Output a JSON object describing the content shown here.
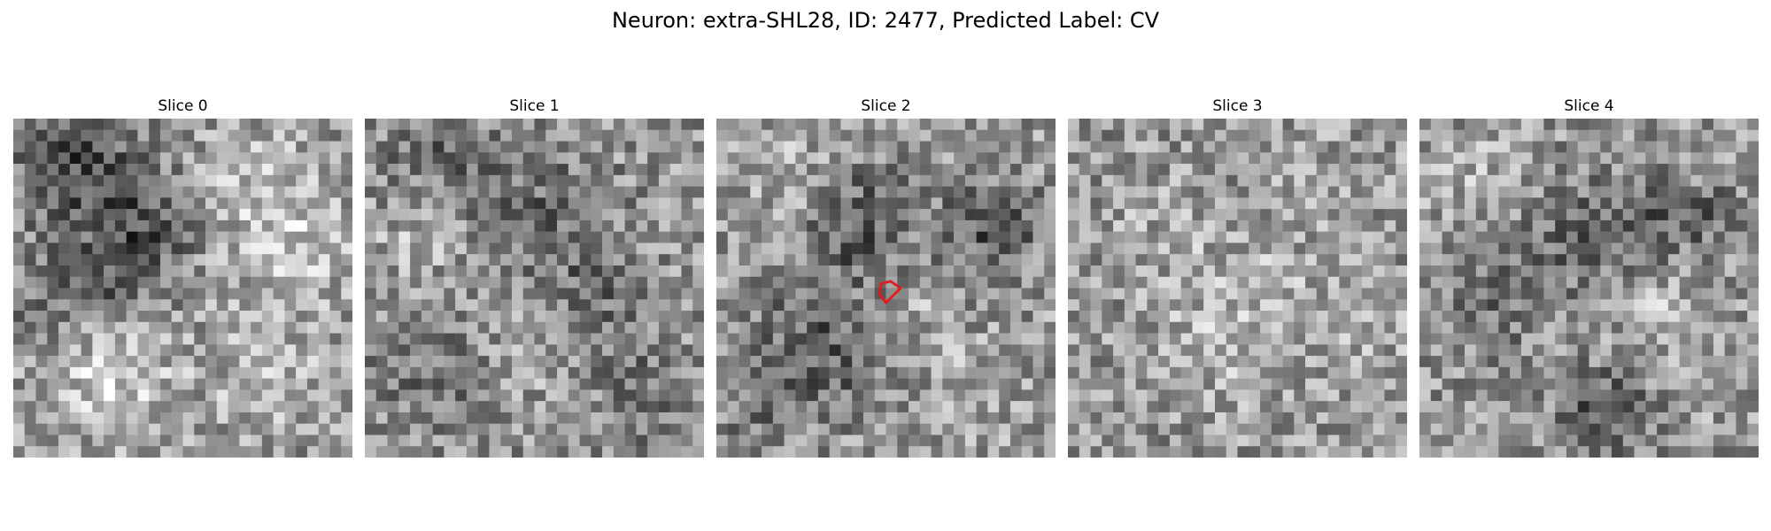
{
  "figure": {
    "title": "Neuron: extra-SHL28, ID: 2477, Predicted Label: CV"
  },
  "panels": [
    {
      "title": "Slice 0",
      "has_roi": false
    },
    {
      "title": "Slice 1",
      "has_roi": false
    },
    {
      "title": "Slice 2",
      "has_roi": true
    },
    {
      "title": "Slice 3",
      "has_roi": false
    },
    {
      "title": "Slice 4",
      "has_roi": false
    }
  ],
  "style": {
    "roi_color": "#e41a1c",
    "colormap": "grayscale"
  }
}
